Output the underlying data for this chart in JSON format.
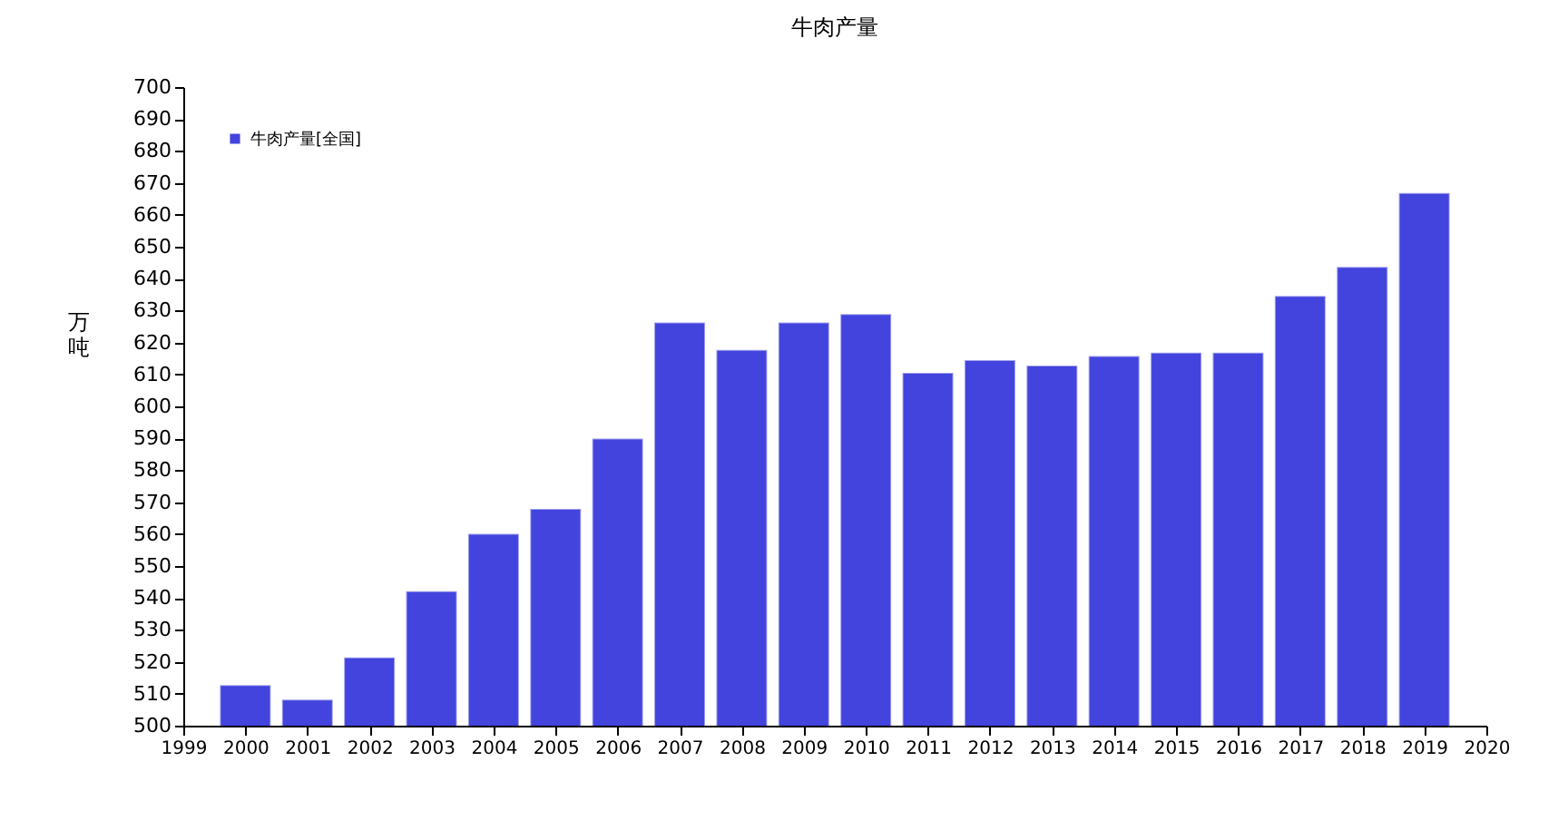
{
  "chart_data": {
    "type": "bar",
    "title": "牛肉产量",
    "ylabel": "万吨",
    "x": [
      2000,
      2001,
      2002,
      2003,
      2004,
      2005,
      2006,
      2007,
      2008,
      2009,
      2010,
      2011,
      2012,
      2013,
      2014,
      2015,
      2016,
      2017,
      2018,
      2019
    ],
    "series": [
      {
        "name": "牛肉产量[全国]",
        "color": "#4343dd",
        "values": [
          512.7,
          508.2,
          521.4,
          542.1,
          560.1,
          567.9,
          589.9,
          626.3,
          617.7,
          626.3,
          628.9,
          610.5,
          614.5,
          612.8,
          615.8,
          616.8,
          616.8,
          634.6,
          643.7,
          666.8
        ]
      }
    ],
    "xlim": [
      1999,
      2020
    ],
    "xticks": [
      1999,
      2000,
      2001,
      2002,
      2003,
      2004,
      2005,
      2006,
      2007,
      2008,
      2009,
      2010,
      2011,
      2012,
      2013,
      2014,
      2015,
      2016,
      2017,
      2018,
      2019,
      2020
    ],
    "ylim": [
      500,
      700
    ],
    "yticks": [
      500,
      510,
      520,
      530,
      540,
      550,
      560,
      570,
      580,
      590,
      600,
      610,
      620,
      630,
      640,
      650,
      660,
      670,
      680,
      690,
      700
    ],
    "grid": false,
    "legend": "top left"
  }
}
